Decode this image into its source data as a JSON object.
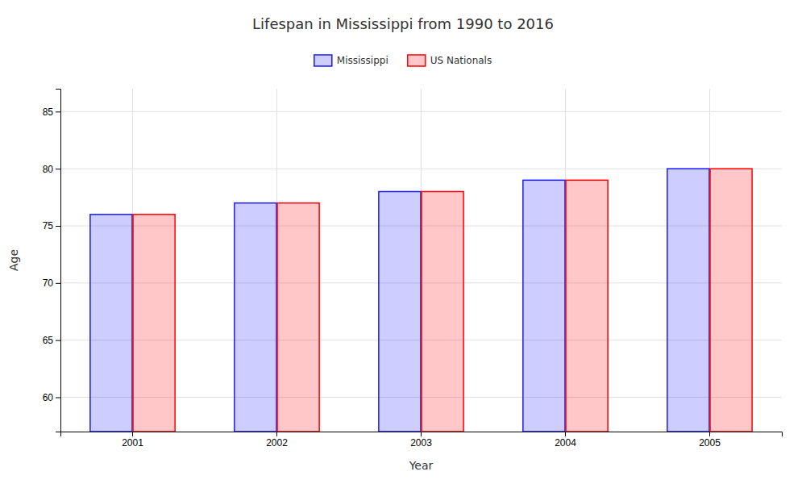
{
  "chart_data": {
    "type": "bar",
    "title": "Lifespan in Mississippi from 1990 to 2016",
    "xlabel": "Year",
    "ylabel": "Age",
    "categories": [
      "2001",
      "2002",
      "2003",
      "2004",
      "2005"
    ],
    "series": [
      {
        "name": "Mississippi",
        "color": "#1a1aff",
        "values": [
          76,
          77,
          78,
          79,
          80
        ]
      },
      {
        "name": "US Nationals",
        "color": "#ff0000",
        "values": [
          76,
          77,
          78,
          79,
          80
        ]
      }
    ],
    "ylim": [
      57,
      87
    ],
    "yticks": [
      60,
      65,
      70,
      75,
      80,
      85
    ],
    "grid": true,
    "legend": "top"
  }
}
